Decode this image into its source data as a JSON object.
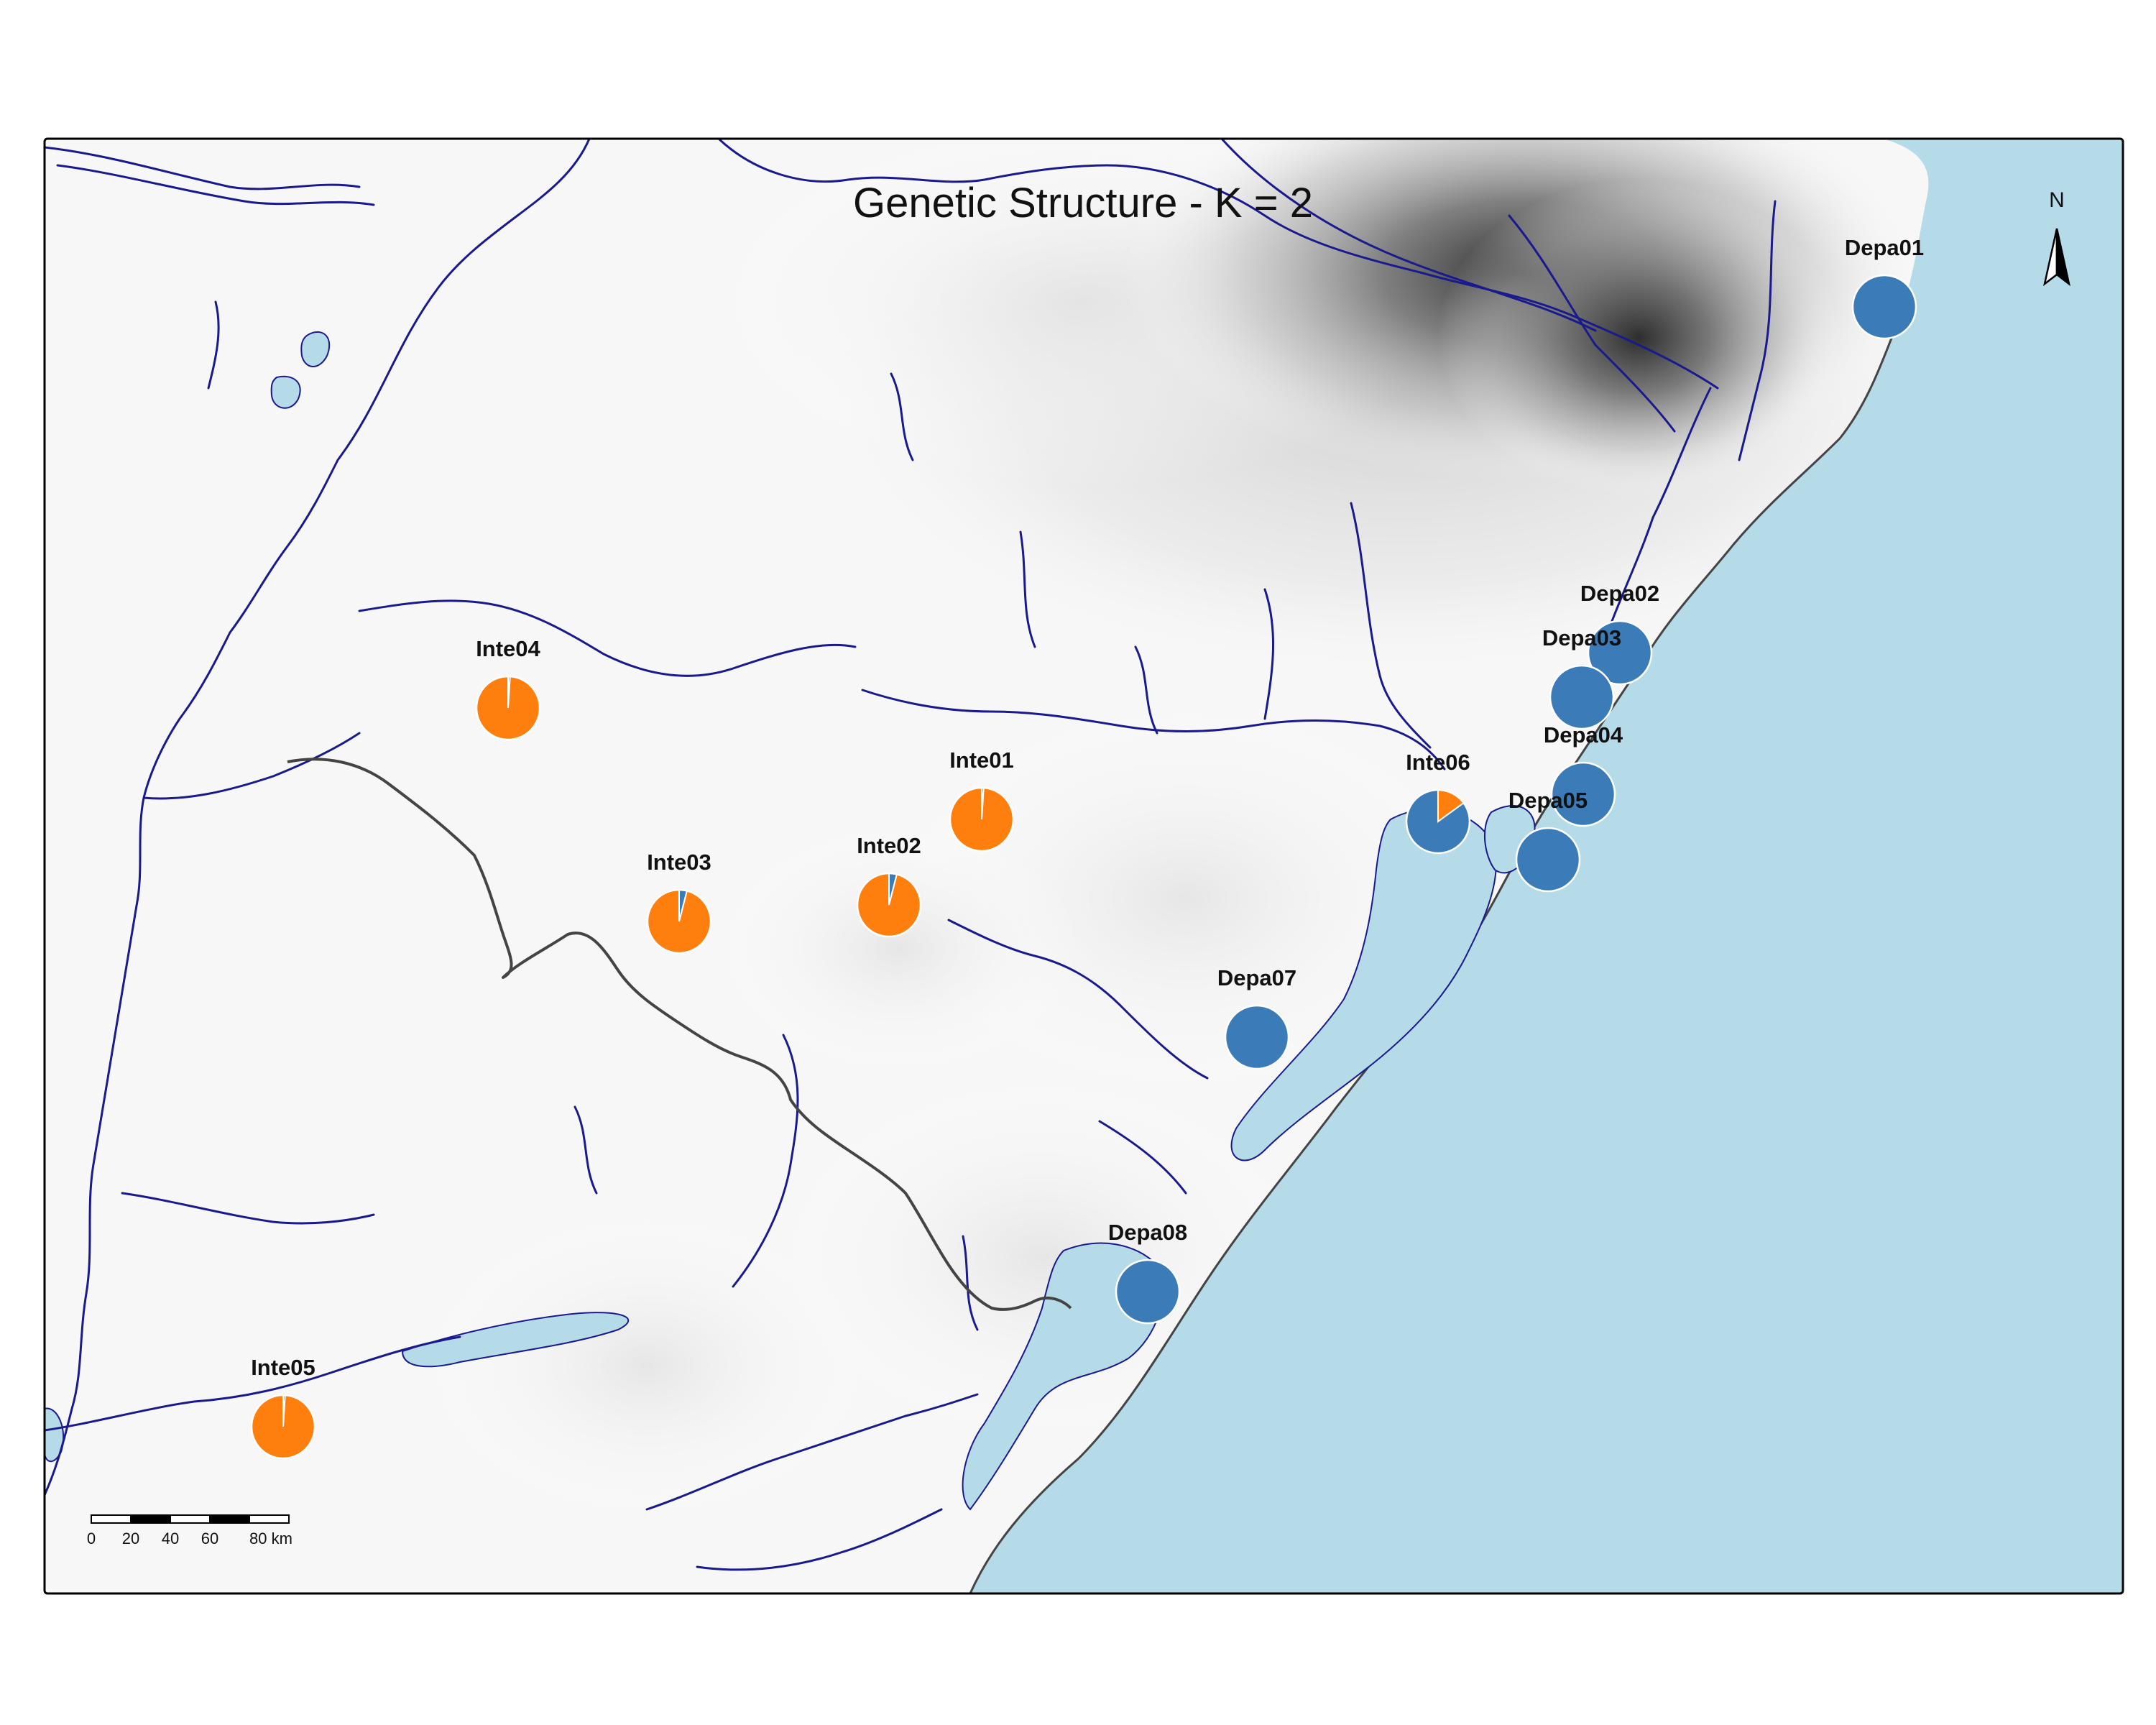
{
  "title": "Genetic Structure - K = 2",
  "north_label": "N",
  "colors": {
    "cluster_1": "#3b7cb8",
    "cluster_2": "#ff7f0e",
    "water": "#b5dbe8",
    "river": "#1a1a8c",
    "border": "#444444",
    "relief_dark": "#3a3a3a",
    "relief_light": "#ffffff"
  },
  "scale_bar": {
    "ticks": [
      "0",
      "20",
      "40",
      "60",
      "80 km"
    ]
  },
  "populations": [
    {
      "id": "Depa01",
      "cluster_1": 1.0,
      "cluster_2": 0.0
    },
    {
      "id": "Depa02",
      "cluster_1": 1.0,
      "cluster_2": 0.0
    },
    {
      "id": "Depa03",
      "cluster_1": 1.0,
      "cluster_2": 0.0
    },
    {
      "id": "Depa04",
      "cluster_1": 1.0,
      "cluster_2": 0.0
    },
    {
      "id": "Depa05",
      "cluster_1": 1.0,
      "cluster_2": 0.0
    },
    {
      "id": "Depa07",
      "cluster_1": 1.0,
      "cluster_2": 0.0
    },
    {
      "id": "Depa08",
      "cluster_1": 1.0,
      "cluster_2": 0.0
    },
    {
      "id": "Inte01",
      "cluster_1": 0.01,
      "cluster_2": 0.99
    },
    {
      "id": "Inte02",
      "cluster_1": 0.04,
      "cluster_2": 0.96
    },
    {
      "id": "Inte03",
      "cluster_1": 0.04,
      "cluster_2": 0.96
    },
    {
      "id": "Inte04",
      "cluster_1": 0.01,
      "cluster_2": 0.99
    },
    {
      "id": "Inte05",
      "cluster_1": 0.01,
      "cluster_2": 0.99
    },
    {
      "id": "Inte06",
      "cluster_1": 0.85,
      "cluster_2": 0.15
    }
  ]
}
